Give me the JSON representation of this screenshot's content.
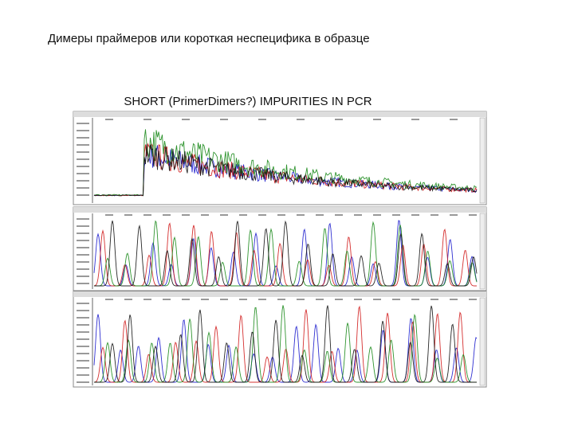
{
  "slide": {
    "title": "Димеры праймеров или короткая неспецифика в образце"
  },
  "figure": {
    "title": "SHORT (PrimerDimers?) IMPURITIES IN PCR"
  }
}
